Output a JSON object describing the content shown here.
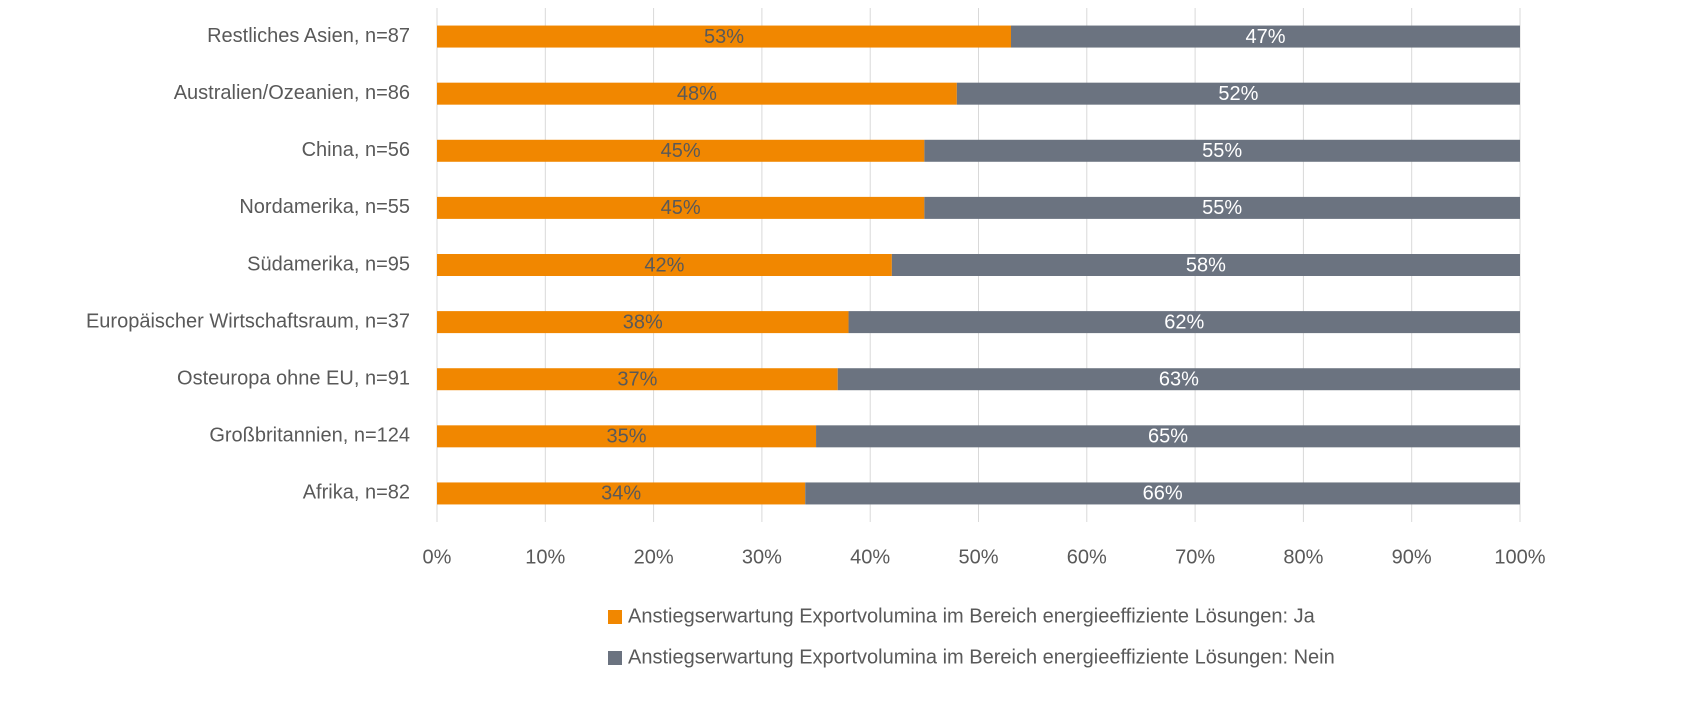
{
  "chart_data": {
    "type": "stacked_barh",
    "categories": [
      "Restliches Asien, n=87",
      "Australien/Ozeanien, n=86",
      "China, n=56",
      "Nordamerika, n=55",
      "Südamerika, n=95",
      "Europäischer Wirtschaftsraum, n=37",
      "Osteuropa ohne EU, n=91",
      "Großbritannien, n=124",
      "Afrika, n=82"
    ],
    "series": [
      {
        "name": "Anstiegserwartung Exportvolumina im Bereich energieeffiziente Lösungen: Ja",
        "color": "#f18700",
        "values": [
          53,
          48,
          45,
          45,
          42,
          38,
          37,
          35,
          34
        ],
        "value_labels": [
          "53%",
          "48%",
          "45%",
          "45%",
          "42%",
          "38%",
          "37%",
          "35%",
          "34%"
        ]
      },
      {
        "name": "Anstiegserwartung Exportvolumina im Bereich energieeffiziente Lösungen: Nein",
        "color": "#6b7380",
        "values": [
          47,
          52,
          55,
          55,
          58,
          62,
          63,
          65,
          66
        ],
        "value_labels": [
          "47%",
          "52%",
          "55%",
          "55%",
          "58%",
          "62%",
          "63%",
          "65%",
          "66%"
        ]
      }
    ],
    "xlim": [
      0,
      100
    ],
    "xticks": [
      {
        "value": 0,
        "label": "0%"
      },
      {
        "value": 10,
        "label": "10%"
      },
      {
        "value": 20,
        "label": "20%"
      },
      {
        "value": 30,
        "label": "30%"
      },
      {
        "value": 40,
        "label": "40%"
      },
      {
        "value": 50,
        "label": "50%"
      },
      {
        "value": 60,
        "label": "60%"
      },
      {
        "value": 70,
        "label": "70%"
      },
      {
        "value": 80,
        "label": "80%"
      },
      {
        "value": 90,
        "label": "90%"
      },
      {
        "value": 100,
        "label": "100%"
      }
    ],
    "grid": true,
    "legend": "bottom"
  }
}
